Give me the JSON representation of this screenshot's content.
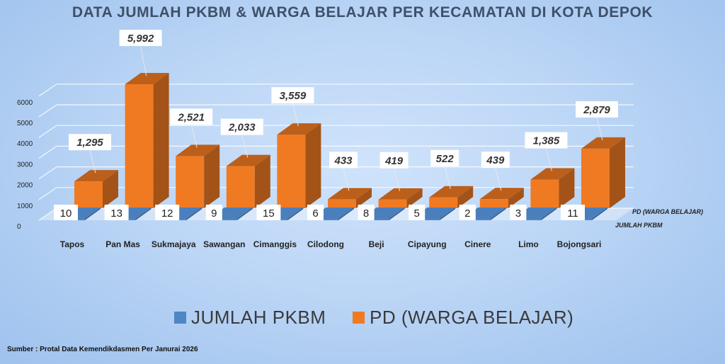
{
  "chart_data": {
    "type": "bar",
    "title": "DATA JUMLAH PKBM & WARGA BELAJAR PER KECAMATAN DI KOTA DEPOK",
    "categories": [
      "Tapos",
      "Pan Mas",
      "Sukmajaya",
      "Sawangan",
      "Cimanggis",
      "Cilodong",
      "Beji",
      "Cipayung",
      "Cinere",
      "Limo",
      "Bojongsari"
    ],
    "series": [
      {
        "name": "JUMLAH PKBM",
        "depth_label": "JUMLAH PKBM",
        "color": "#4f86c6",
        "values": [
          10,
          13,
          12,
          9,
          15,
          6,
          8,
          5,
          2,
          3,
          11
        ],
        "value_labels": [
          "10",
          "13",
          "12",
          "9",
          "15",
          "6",
          "8",
          "5",
          "2",
          "3",
          "11"
        ]
      },
      {
        "name": "PD (WARGA BELAJAR)",
        "depth_label": "PD (WARGA BELAJAR)",
        "color": "#f07a22",
        "values": [
          1295,
          5992,
          2521,
          2033,
          3559,
          433,
          419,
          522,
          439,
          1385,
          2879
        ],
        "value_labels": [
          "1,295",
          "5,992",
          "2,521",
          "2,033",
          "3,559",
          "433",
          "419",
          "522",
          "439",
          "1,385",
          "2,879"
        ]
      }
    ],
    "yticks": [
      "0",
      "1000",
      "2000",
      "3000",
      "4000",
      "5000",
      "6000"
    ],
    "ylim": [
      0,
      6000
    ],
    "three_d": true,
    "grid": true,
    "legend_position": "bottom",
    "legend": [
      "JUMLAH PKBM",
      "PD (WARGA BELAJAR)"
    ]
  },
  "source_note": "Sumber : Protal Data Kemendikdasmen Per Janurai 2026"
}
